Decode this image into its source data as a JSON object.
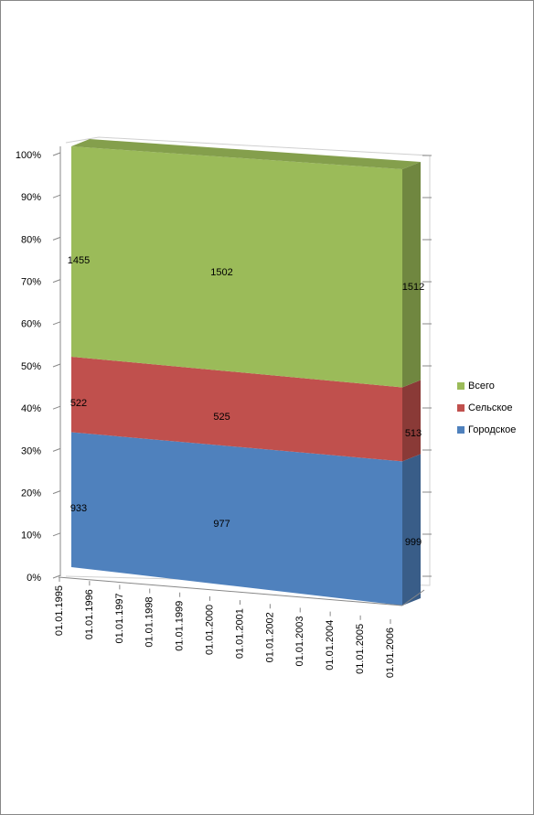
{
  "chart_data": {
    "type": "area_3d",
    "stacking": "percent",
    "x": [
      "01.01.1995",
      "01.01.2000",
      "01.01.2006"
    ],
    "xticks": [
      "01.01.1995",
      "01.01.1996",
      "01.01.1997",
      "01.01.1998",
      "01.01.1999",
      "01.01.2000",
      "01.01.2001",
      "01.01.2002",
      "01.01.2003",
      "01.01.2004",
      "01.01.2005",
      "01.01.2006"
    ],
    "series": [
      {
        "name": "Городское",
        "color": "#4f81bd",
        "values": [
          933,
          977,
          999
        ]
      },
      {
        "name": "Сельское",
        "color": "#c0504d",
        "values": [
          522,
          525,
          513
        ]
      },
      {
        "name": "Всего",
        "color": "#9bbb59",
        "values": [
          1455,
          1502,
          1512
        ]
      }
    ],
    "ylim": [
      0,
      100
    ],
    "yticks": [
      {
        "value": 0,
        "label": "0%"
      },
      {
        "value": 10,
        "label": "10%"
      },
      {
        "value": 20,
        "label": "20%"
      },
      {
        "value": 30,
        "label": "30%"
      },
      {
        "value": 40,
        "label": "40%"
      },
      {
        "value": 50,
        "label": "50%"
      },
      {
        "value": 60,
        "label": "60%"
      },
      {
        "value": 70,
        "label": "70%"
      },
      {
        "value": 80,
        "label": "80%"
      },
      {
        "value": 90,
        "label": "90%"
      },
      {
        "value": 100,
        "label": "100%"
      }
    ],
    "legend": "right"
  }
}
